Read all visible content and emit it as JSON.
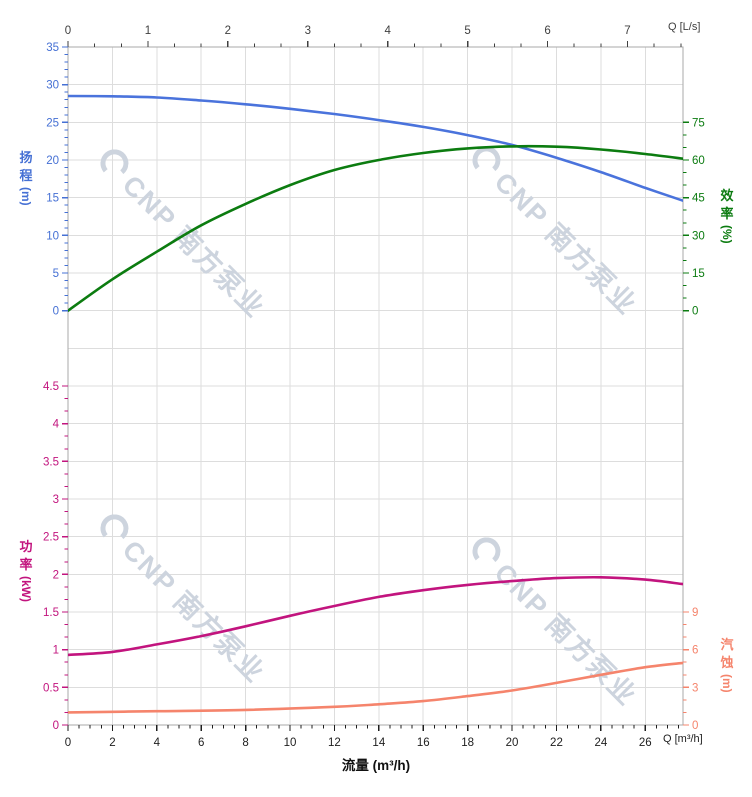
{
  "page": {
    "background": "#ffffff"
  },
  "watermark": {
    "text": "CNP 南方泵业",
    "color": "#cdd4de"
  },
  "chart_data": {
    "type": "line",
    "description": "Pump performance curves: head & efficiency (top section), power & NPSH (bottom section) vs flow",
    "grid": {
      "color": "#dddddd",
      "border_color": "#aaaaaa",
      "visible": true
    },
    "x_axis_bottom": {
      "label": "流量 (m³/h)",
      "unit_label": "Q [m³/h]",
      "min": 0,
      "max": 27.7,
      "major_ticks": [
        0,
        2,
        4,
        6,
        8,
        10,
        12,
        14,
        16,
        18,
        20,
        22,
        24,
        26
      ],
      "minor_tick_step": 0.5,
      "color": "#1d1d1d"
    },
    "x_axis_top": {
      "unit_label": "Q [L/s]",
      "min": 0,
      "max": 7.694,
      "major_ticks": [
        0,
        1,
        2,
        3,
        4,
        5,
        6,
        7
      ],
      "minor_divisions": 3,
      "m3h_per_unit": 3.6,
      "color": "#3f3f3f"
    },
    "y_axis_head": {
      "label": "扬程",
      "unit": "(m)",
      "side": "left",
      "section": "top",
      "min": 0,
      "max": 35,
      "major_ticks": [
        0,
        5,
        10,
        15,
        20,
        25,
        30,
        35
      ],
      "minor_tick_step": 1,
      "color": "#4570d4"
    },
    "y_axis_efficiency": {
      "label": "效率",
      "unit": "(%)",
      "side": "right",
      "section": "top",
      "min": 0,
      "max": 75,
      "major_ticks": [
        0,
        15,
        30,
        45,
        60,
        75
      ],
      "minor_tick_step": 5,
      "color": "#0b7b10"
    },
    "y_axis_power": {
      "label": "功率",
      "unit": "(kW)",
      "side": "left",
      "section": "bottom",
      "min": 0,
      "max": 4.5,
      "major_ticks": [
        0,
        0.5,
        1,
        1.5,
        2,
        2.5,
        3,
        3.5,
        4,
        4.5
      ],
      "minor_divisions": 3,
      "color": "#c2147e"
    },
    "y_axis_npsh": {
      "label": "汽蚀",
      "unit": "(m)",
      "side": "right",
      "section": "bottom",
      "min": 0,
      "max": 9,
      "major_ticks": [
        0,
        3,
        6,
        9
      ],
      "minor_tick_step": 1,
      "color": "#f5846c"
    },
    "series": [
      {
        "name": "head",
        "axis": "y_axis_head",
        "color": "#4a73dc",
        "points": [
          [
            0,
            28.5
          ],
          [
            2,
            28.45
          ],
          [
            4,
            28.3
          ],
          [
            6,
            27.9
          ],
          [
            8,
            27.4
          ],
          [
            10,
            26.8
          ],
          [
            12,
            26.1
          ],
          [
            14,
            25.3
          ],
          [
            16,
            24.4
          ],
          [
            18,
            23.3
          ],
          [
            20,
            22.0
          ],
          [
            22,
            20.3
          ],
          [
            24,
            18.4
          ],
          [
            26,
            16.3
          ],
          [
            27.7,
            14.6
          ]
        ]
      },
      {
        "name": "efficiency",
        "axis": "y_axis_efficiency",
        "color": "#0c7c10",
        "points": [
          [
            0,
            0
          ],
          [
            2,
            12.5
          ],
          [
            4,
            23.5
          ],
          [
            6,
            34
          ],
          [
            8,
            42.5
          ],
          [
            10,
            50
          ],
          [
            12,
            56
          ],
          [
            14,
            60
          ],
          [
            16,
            62.8
          ],
          [
            18,
            64.6
          ],
          [
            20,
            65.4
          ],
          [
            22,
            65.3
          ],
          [
            24,
            64.2
          ],
          [
            26,
            62.4
          ],
          [
            27.7,
            60.5
          ]
        ]
      },
      {
        "name": "power",
        "axis": "y_axis_power",
        "color": "#c2147e",
        "points": [
          [
            0,
            0.93
          ],
          [
            2,
            0.97
          ],
          [
            4,
            1.07
          ],
          [
            6,
            1.18
          ],
          [
            8,
            1.31
          ],
          [
            10,
            1.45
          ],
          [
            12,
            1.58
          ],
          [
            14,
            1.7
          ],
          [
            16,
            1.79
          ],
          [
            18,
            1.86
          ],
          [
            20,
            1.91
          ],
          [
            22,
            1.95
          ],
          [
            24,
            1.96
          ],
          [
            26,
            1.93
          ],
          [
            27.7,
            1.87
          ]
        ]
      },
      {
        "name": "npsh",
        "axis": "y_axis_npsh",
        "color": "#f5846c",
        "points": [
          [
            0,
            1.0
          ],
          [
            4,
            1.1
          ],
          [
            8,
            1.2
          ],
          [
            12,
            1.45
          ],
          [
            14,
            1.65
          ],
          [
            16,
            1.9
          ],
          [
            18,
            2.3
          ],
          [
            20,
            2.75
          ],
          [
            22,
            3.35
          ],
          [
            24,
            4.0
          ],
          [
            26,
            4.6
          ],
          [
            27.7,
            4.95
          ]
        ]
      }
    ]
  }
}
